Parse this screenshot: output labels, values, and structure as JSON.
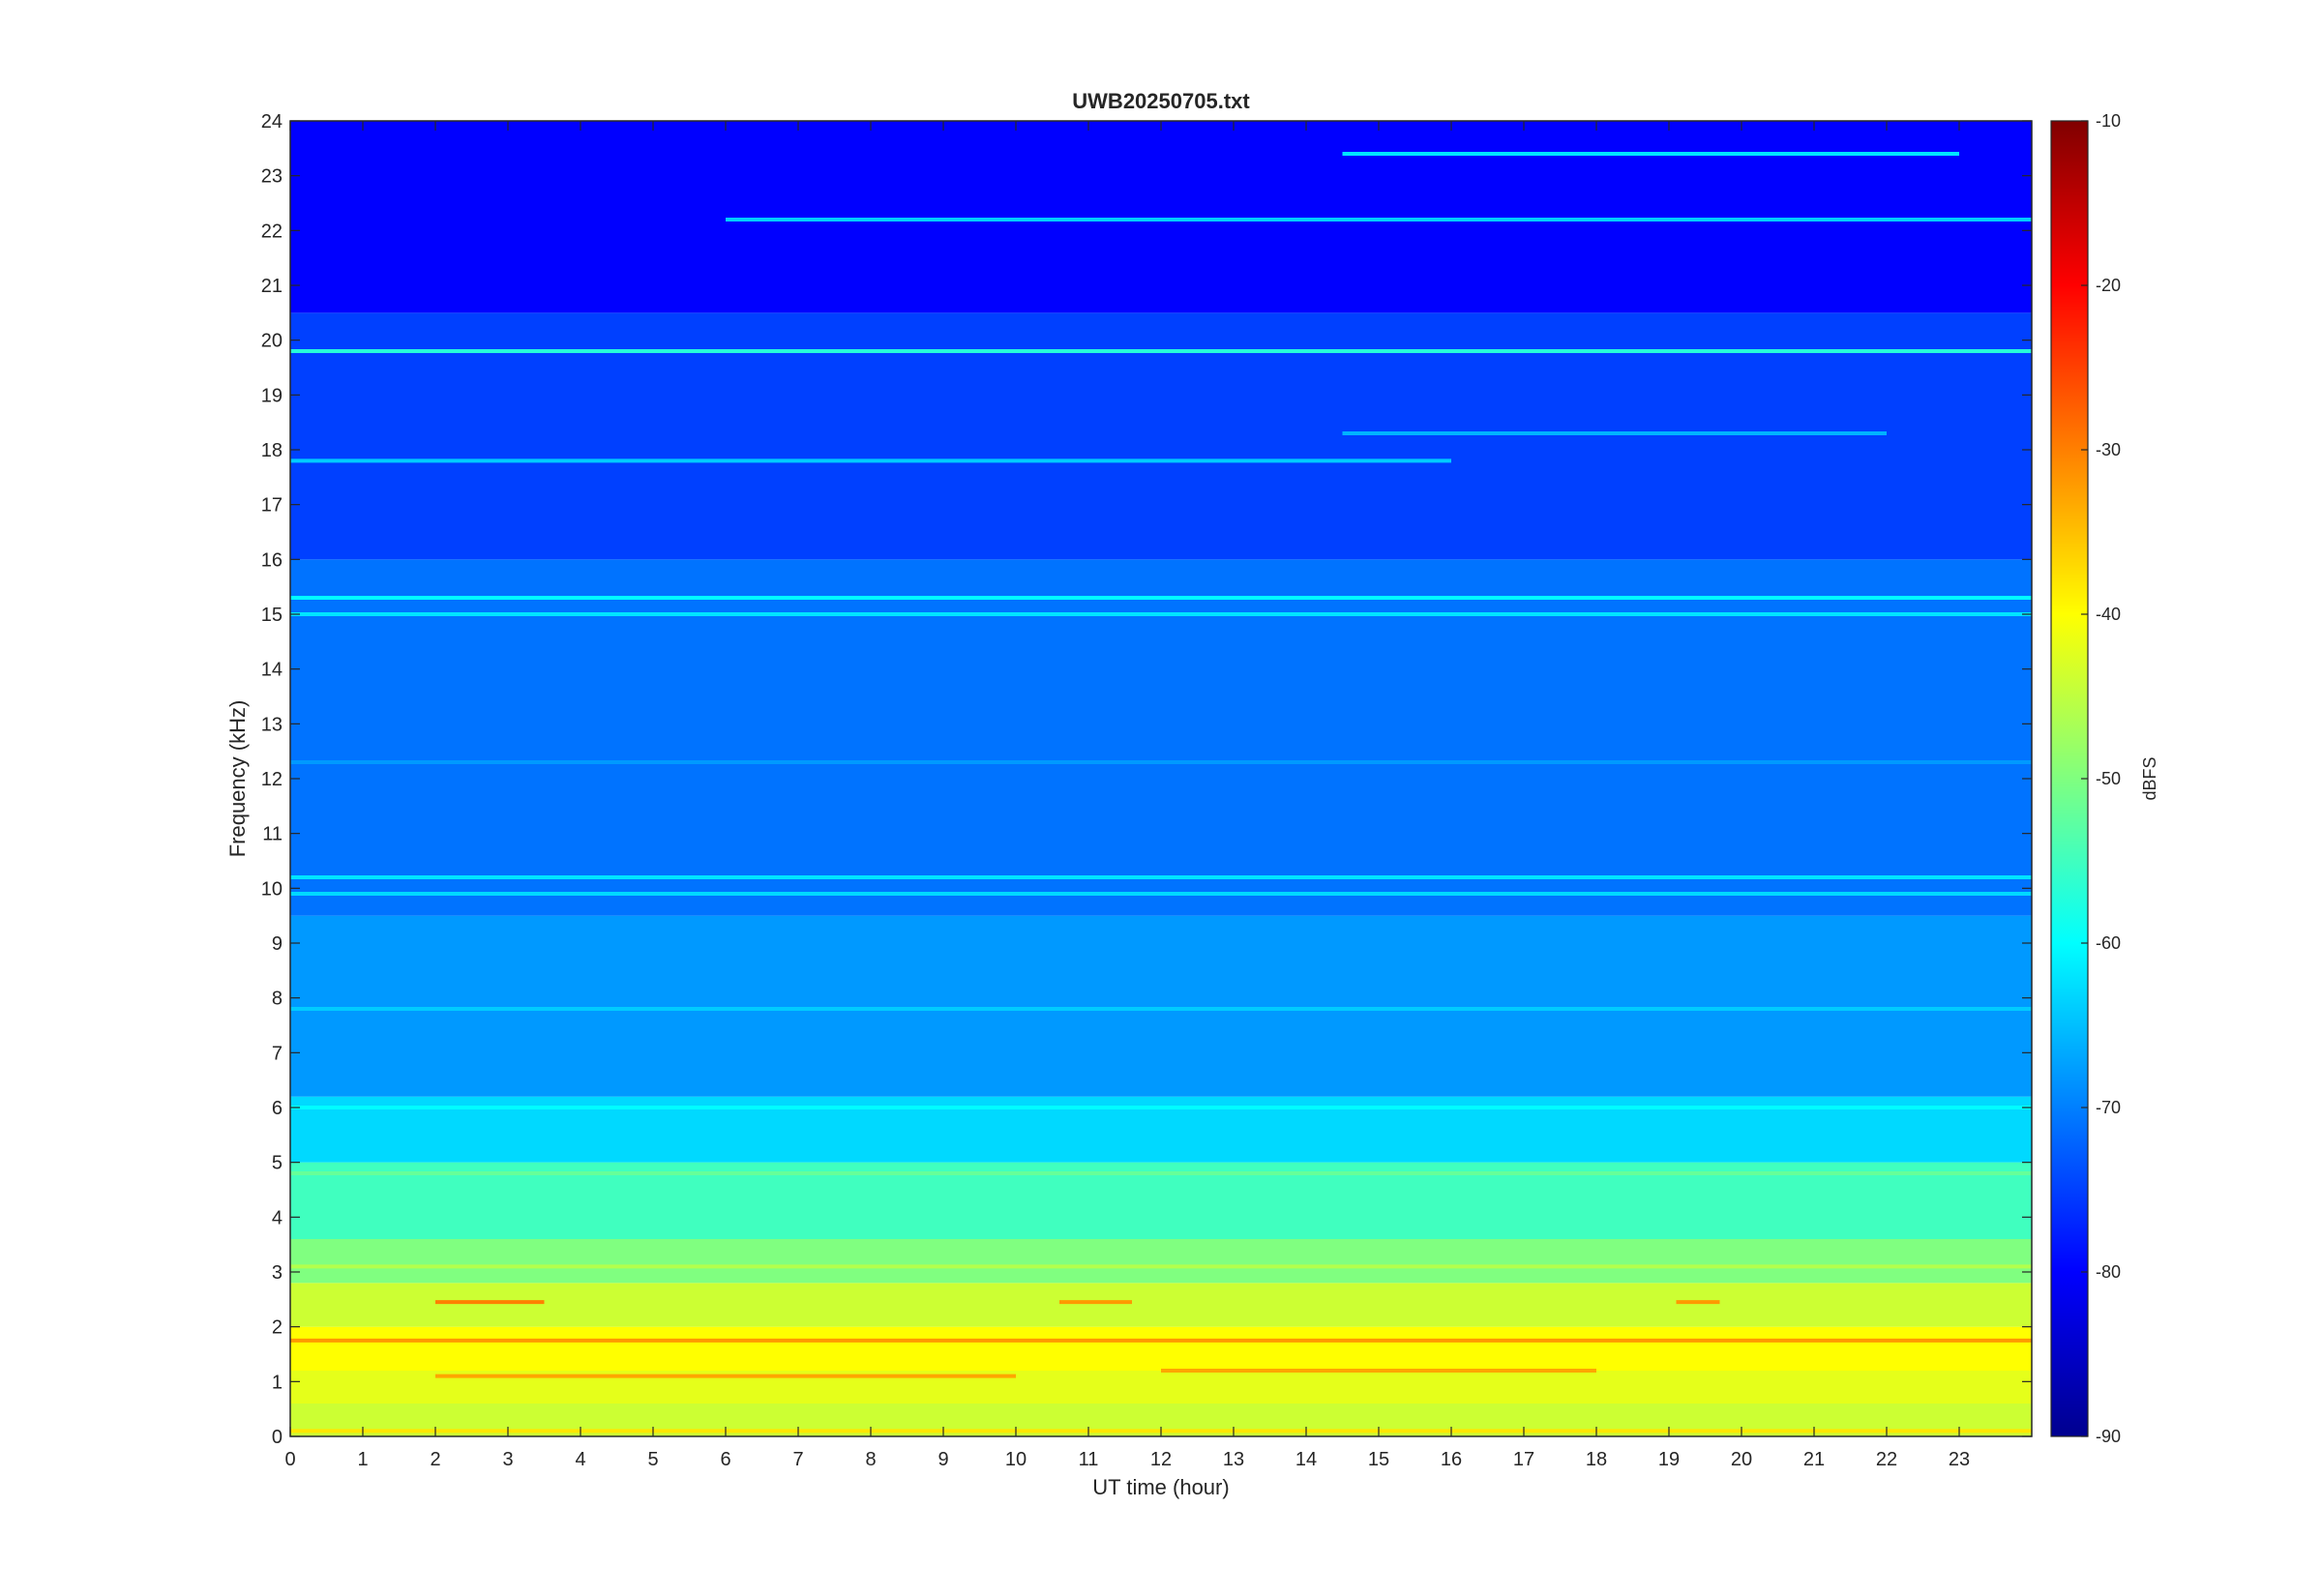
{
  "chart_data": {
    "type": "heatmap",
    "title": "UWB20250705.txt",
    "xlabel": "UT time (hour)",
    "ylabel": "Frequency (kHz)",
    "xlim": [
      0,
      24
    ],
    "ylim": [
      0,
      24
    ],
    "x_ticks": [
      "0",
      "1",
      "2",
      "3",
      "4",
      "5",
      "6",
      "7",
      "8",
      "9",
      "10",
      "11",
      "12",
      "13",
      "14",
      "15",
      "16",
      "17",
      "18",
      "19",
      "20",
      "21",
      "22",
      "23"
    ],
    "y_ticks": [
      "0",
      "1",
      "2",
      "3",
      "4",
      "5",
      "6",
      "7",
      "8",
      "9",
      "10",
      "11",
      "12",
      "13",
      "14",
      "15",
      "16",
      "17",
      "18",
      "19",
      "20",
      "21",
      "22",
      "23",
      "24"
    ],
    "colorbar": {
      "label": "dBFS",
      "clim": [
        -90,
        -10
      ],
      "ticks": [
        "-90",
        "-80",
        "-70",
        "-60",
        "-50",
        "-40",
        "-30",
        "-20",
        "-10"
      ],
      "colormap": "jet"
    },
    "bands": [
      {
        "f_from": 0.0,
        "f_to": 0.6,
        "level": -44
      },
      {
        "f_from": 0.6,
        "f_to": 1.2,
        "level": -42
      },
      {
        "f_from": 1.2,
        "f_to": 2.0,
        "level": -40
      },
      {
        "f_from": 2.0,
        "f_to": 2.8,
        "level": -44
      },
      {
        "f_from": 2.8,
        "f_to": 3.6,
        "level": -50
      },
      {
        "f_from": 3.6,
        "f_to": 5.0,
        "level": -55
      },
      {
        "f_from": 5.0,
        "f_to": 6.2,
        "level": -63
      },
      {
        "f_from": 6.2,
        "f_to": 9.5,
        "level": -68
      },
      {
        "f_from": 9.5,
        "f_to": 16.0,
        "level": -71
      },
      {
        "f_from": 16.0,
        "f_to": 20.5,
        "level": -75
      },
      {
        "f_from": 20.5,
        "f_to": 24.0,
        "level": -80
      }
    ],
    "lines": [
      {
        "freq": 19.8,
        "t_from": 0,
        "t_to": 24,
        "level": -57
      },
      {
        "freq": 18.3,
        "t_from": 14.5,
        "t_to": 22,
        "level": -66
      },
      {
        "freq": 17.8,
        "t_from": 0,
        "t_to": 16,
        "level": -64
      },
      {
        "freq": 23.4,
        "t_from": 14.5,
        "t_to": 23,
        "level": -62
      },
      {
        "freq": 22.2,
        "t_from": 6,
        "t_to": 24,
        "level": -64
      },
      {
        "freq": 15.3,
        "t_from": 0,
        "t_to": 24,
        "level": -60
      },
      {
        "freq": 15.0,
        "t_from": 0,
        "t_to": 24,
        "level": -62
      },
      {
        "freq": 10.2,
        "t_from": 0,
        "t_to": 24,
        "level": -62
      },
      {
        "freq": 9.9,
        "t_from": 0,
        "t_to": 24,
        "level": -63
      },
      {
        "freq": 12.3,
        "t_from": 0,
        "t_to": 24,
        "level": -68
      },
      {
        "freq": 7.8,
        "t_from": 0,
        "t_to": 24,
        "level": -64
      },
      {
        "freq": 6.0,
        "t_from": 0,
        "t_to": 24,
        "level": -60
      },
      {
        "freq": 4.8,
        "t_from": 0,
        "t_to": 24,
        "level": -52
      },
      {
        "freq": 3.1,
        "t_from": 0,
        "t_to": 24,
        "level": -46
      },
      {
        "freq": 2.45,
        "t_from": 2,
        "t_to": 3.5,
        "level": -30
      },
      {
        "freq": 2.45,
        "t_from": 10.6,
        "t_to": 11.6,
        "level": -32
      },
      {
        "freq": 2.45,
        "t_from": 19.1,
        "t_to": 19.7,
        "level": -32
      },
      {
        "freq": 1.75,
        "t_from": 0,
        "t_to": 24,
        "level": -32
      },
      {
        "freq": 1.1,
        "t_from": 2,
        "t_to": 10,
        "level": -33
      },
      {
        "freq": 1.2,
        "t_from": 12,
        "t_to": 18,
        "level": -33
      },
      {
        "freq": 0.1,
        "t_from": 0,
        "t_to": 24,
        "level": -38
      }
    ]
  }
}
